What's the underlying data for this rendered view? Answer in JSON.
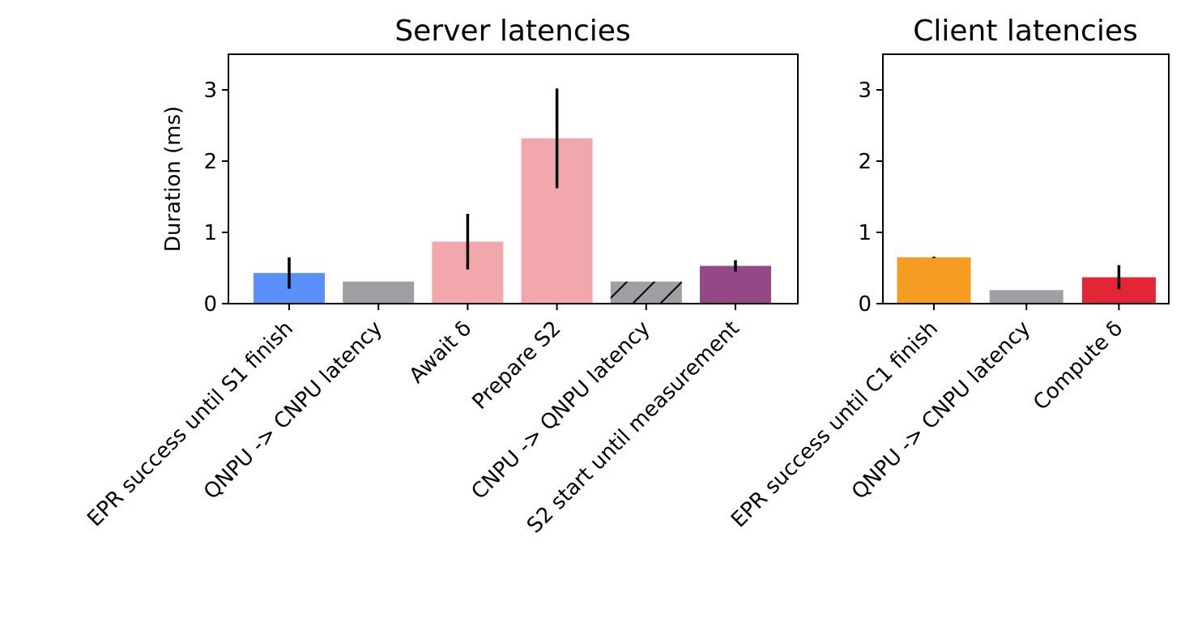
{
  "chart_data": [
    {
      "type": "bar",
      "title": "Server latencies",
      "xlabel": "",
      "ylabel": "Duration (ms)",
      "ylim": [
        0,
        3.5
      ],
      "yticks": [
        0,
        1,
        2,
        3
      ],
      "categories": [
        "EPR success until S1 finish",
        "QNPU -> CNPU latency",
        "Await δ",
        "Prepare S2",
        "CNPU -> QNPU latency",
        "S2 start until measurement"
      ],
      "values": [
        0.43,
        0.31,
        0.87,
        2.32,
        0.31,
        0.53
      ],
      "errors": [
        0.22,
        0,
        0.39,
        0.7,
        0,
        0.08
      ],
      "colors": [
        "#5b8ff9",
        "#9e9fa3",
        "#f2a7ad",
        "#f2a7ad",
        "#9e9fa3",
        "#954886"
      ],
      "hatched": [
        false,
        false,
        false,
        false,
        true,
        false
      ],
      "grid": false
    },
    {
      "type": "bar",
      "title": "Client latencies",
      "xlabel": "",
      "ylabel": "",
      "ylim": [
        0,
        3.5
      ],
      "yticks": [
        0,
        1,
        2,
        3
      ],
      "categories": [
        "EPR success until C1 finish",
        "QNPU -> CNPU latency",
        "Compute δ"
      ],
      "values": [
        0.65,
        0.19,
        0.37
      ],
      "errors": [
        0.01,
        0,
        0.17
      ],
      "colors": [
        "#f59c23",
        "#9e9fa3",
        "#e32636"
      ],
      "hatched": [
        false,
        false,
        false
      ],
      "grid": false
    }
  ]
}
